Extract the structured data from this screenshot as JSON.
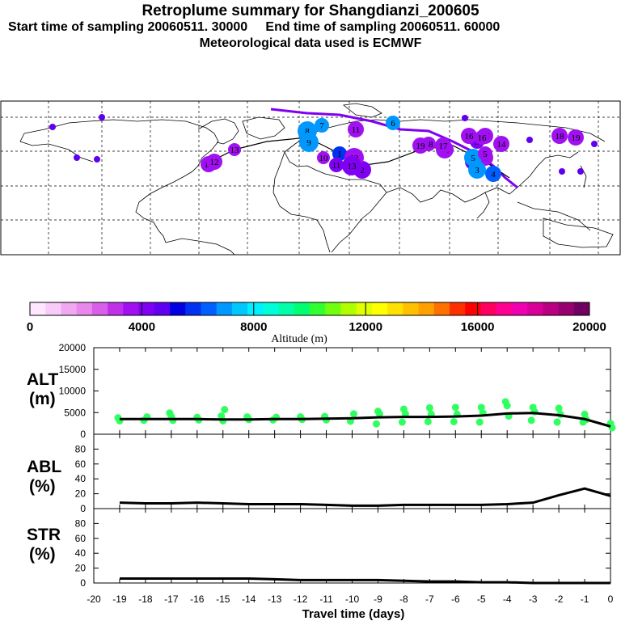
{
  "header": {
    "title": "Retroplume summary for Shangdianzi_200605",
    "line2_start": "Start time of sampling 20060511. 30000",
    "line2_end": "End time of sampling 20060511. 60000",
    "line3": "Meteorological data used is ECMWF"
  },
  "colorbar": {
    "label": "Altitude (m)",
    "ticks": [
      "0",
      "4000",
      "8000",
      "12000",
      "16000",
      "20000"
    ],
    "colors": [
      "#ffe8ff",
      "#f8ccf8",
      "#f0a8f0",
      "#e888ec",
      "#d860e8",
      "#c030e8",
      "#a010f0",
      "#8000f4",
      "#6000f0",
      "#0000e0",
      "#0030f0",
      "#0060ff",
      "#0098ff",
      "#00c8ff",
      "#00f0ff",
      "#00ffd8",
      "#00ffa8",
      "#00ff70",
      "#30ff30",
      "#70ff10",
      "#b0ff00",
      "#e0ff00",
      "#ffff00",
      "#ffe000",
      "#ffc000",
      "#ffa000",
      "#ff7000",
      "#ff3000",
      "#ff0000",
      "#ff0060",
      "#ff0090",
      "#f000b0",
      "#d80098",
      "#b80080",
      "#980070",
      "#700060"
    ]
  },
  "map": {
    "markers": [
      {
        "label": "1",
        "color": "#6000f0"
      },
      {
        "label": "1",
        "color": "#0030f0"
      },
      {
        "label": "2",
        "color": "#8000f4"
      },
      {
        "label": "2",
        "color": "#a010f0"
      },
      {
        "label": "3",
        "color": "#0098ff"
      },
      {
        "label": "3",
        "color": "#8000f4"
      },
      {
        "label": "4",
        "color": "#0060ff"
      },
      {
        "label": "5",
        "color": "#0098ff"
      },
      {
        "label": "5",
        "color": "#a010f0"
      },
      {
        "label": "6",
        "color": "#0098ff"
      },
      {
        "label": "7",
        "color": "#0098ff"
      },
      {
        "label": "8",
        "color": "#0098ff"
      },
      {
        "label": "9",
        "color": "#0098ff"
      },
      {
        "label": "10",
        "color": "#a010f0"
      },
      {
        "label": "10",
        "color": "#a010f0"
      },
      {
        "label": "11",
        "color": "#a010f0"
      },
      {
        "label": "11",
        "color": "#8000f4"
      },
      {
        "label": "12",
        "color": "#a010f0"
      },
      {
        "label": "12",
        "color": "#a010f0"
      },
      {
        "label": "13",
        "color": "#a010f0"
      },
      {
        "label": "13",
        "color": "#8000f4"
      },
      {
        "label": "14",
        "color": "#a010f0"
      },
      {
        "label": "14",
        "color": "#a010f0"
      },
      {
        "label": "15",
        "color": "#a010f0"
      },
      {
        "label": "16",
        "color": "#a010f0"
      },
      {
        "label": "16",
        "color": "#a010f0"
      },
      {
        "label": "17",
        "color": "#a010f0"
      },
      {
        "label": "18",
        "color": "#a010f0"
      },
      {
        "label": "18",
        "color": "#a010f0"
      },
      {
        "label": "19",
        "color": "#a010f0"
      },
      {
        "label": "19",
        "color": "#a010f0"
      }
    ]
  },
  "chart_data": [
    {
      "type": "scatter",
      "panel": "ALT",
      "panel_label": "ALT",
      "panel_unit": "(m)",
      "xlabel": "Travel time (days)",
      "xlim": [
        -20,
        0
      ],
      "ylim": [
        0,
        20000
      ],
      "yticks": [
        "0",
        "5000",
        "10000",
        "15000",
        "20000"
      ],
      "mean_line": {
        "x": [
          -19,
          -18,
          -17,
          -16,
          -15,
          -14,
          -13,
          -12,
          -11,
          -10,
          -9,
          -8,
          -7,
          -6,
          -5,
          -4,
          -3,
          -2,
          -1,
          0
        ],
        "y": [
          3500,
          3500,
          3500,
          3500,
          3400,
          3400,
          3500,
          3500,
          3600,
          3700,
          3900,
          4000,
          4000,
          4100,
          4300,
          4800,
          4900,
          4400,
          3500,
          1800
        ]
      },
      "points": {
        "x": [
          -19,
          -19,
          -18,
          -18,
          -17,
          -17,
          -17,
          -16,
          -16,
          -15,
          -15,
          -15,
          -14,
          -14,
          -13,
          -13,
          -12,
          -12,
          -11,
          -11,
          -10,
          -10,
          -9,
          -9,
          -9,
          -8,
          -8,
          -8,
          -7,
          -7,
          -7,
          -6,
          -6,
          -6,
          -5,
          -5,
          -5,
          -4,
          -4,
          -4,
          -3,
          -3,
          -3,
          -2,
          -2,
          -2,
          -1,
          -1,
          -1,
          0,
          0
        ],
        "y": [
          3800,
          3100,
          4000,
          3200,
          4100,
          3200,
          4900,
          3900,
          3300,
          4200,
          3100,
          5700,
          4000,
          3400,
          3900,
          3300,
          4000,
          3400,
          4100,
          3300,
          4700,
          3000,
          5300,
          4700,
          2400,
          5800,
          4700,
          2800,
          6100,
          4600,
          2900,
          6200,
          4600,
          2900,
          6200,
          4900,
          2800,
          6600,
          4200,
          7500,
          6200,
          5200,
          3200,
          6000,
          4600,
          2800,
          4600,
          3400,
          2800,
          2500,
          1500
        ]
      },
      "point_color": "#30ff60"
    },
    {
      "type": "line",
      "panel": "ABL",
      "panel_label": "ABL",
      "panel_unit": "(%)",
      "xlim": [
        -20,
        0
      ],
      "ylim": [
        0,
        100
      ],
      "yticks": [
        "0",
        "20",
        "40",
        "60",
        "80"
      ],
      "x": [
        -19,
        -18,
        -17,
        -16,
        -15,
        -14,
        -13,
        -12,
        -11,
        -10,
        -9,
        -8,
        -7,
        -6,
        -5,
        -4,
        -3,
        -2,
        -1,
        0
      ],
      "y": [
        8,
        7,
        7,
        8,
        7,
        6,
        6,
        6,
        5,
        4,
        4,
        5,
        5,
        5,
        5,
        6,
        8,
        18,
        27,
        17
      ]
    },
    {
      "type": "line",
      "panel": "STR",
      "panel_label": "STR",
      "panel_unit": "(%)",
      "xlim": [
        -20,
        0
      ],
      "ylim": [
        0,
        100
      ],
      "yticks": [
        "0",
        "20",
        "40",
        "60",
        "80"
      ],
      "x": [
        -19,
        -18,
        -17,
        -16,
        -15,
        -14,
        -13,
        -12,
        -11,
        -10,
        -9,
        -8,
        -7,
        -6,
        -5,
        -4,
        -3,
        -2,
        -1,
        0
      ],
      "y": [
        6,
        6,
        6,
        6,
        6,
        6,
        5,
        4,
        4,
        4,
        4,
        3,
        2,
        2,
        1,
        1,
        0,
        0,
        0,
        0
      ],
      "xticks": [
        "-20",
        "-19",
        "-18",
        "-17",
        "-16",
        "-15",
        "-14",
        "-13",
        "-12",
        "-11",
        "-10",
        "-9",
        "-8",
        "-7",
        "-6",
        "-5",
        "-4",
        "-3",
        "-2",
        "-1",
        "0"
      ]
    }
  ]
}
